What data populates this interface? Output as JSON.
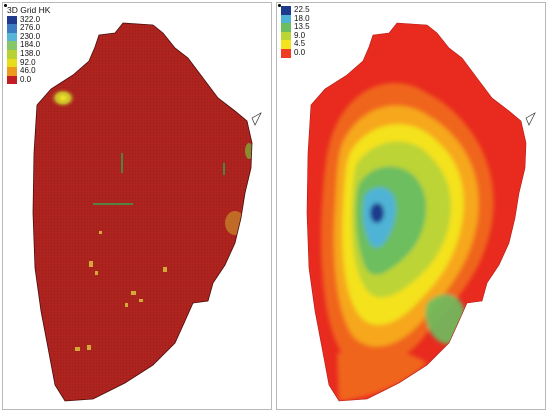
{
  "left_map": {
    "legend": {
      "title": "3D Grid HK",
      "labels": [
        "322.0",
        "276.0",
        "230.0",
        "184.0",
        "138.0",
        "92.0",
        "46.0",
        "0.0"
      ],
      "colors": [
        "#1d3a8c",
        "#3e7cc2",
        "#57b6d6",
        "#86c76a",
        "#b9d233",
        "#e8dd1c",
        "#ec9a1e",
        "#c01e23"
      ]
    }
  },
  "right_map": {
    "legend": {
      "labels": [
        "22.5",
        "18.0",
        "13.5",
        "9.0",
        "4.5",
        "0.0"
      ],
      "colors": [
        "#1d3a8c",
        "#4fb3d6",
        "#6cbe5e",
        "#bcd435",
        "#f6e31f",
        "#ef3b24"
      ]
    }
  }
}
